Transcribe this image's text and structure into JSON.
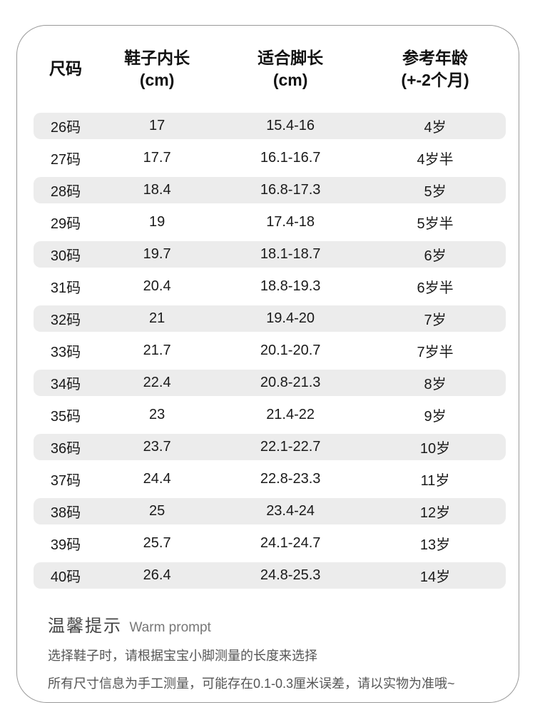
{
  "table": {
    "headers": [
      {
        "lines": [
          "尺码"
        ]
      },
      {
        "lines": [
          "鞋子内长",
          "(cm)"
        ]
      },
      {
        "lines": [
          "适合脚长",
          "(cm)"
        ]
      },
      {
        "lines": [
          "参考年龄",
          "(+-2个月)"
        ]
      }
    ],
    "rows": [
      {
        "size": "26码",
        "inner_length": "17",
        "foot_length": "15.4-16",
        "age": "4岁"
      },
      {
        "size": "27码",
        "inner_length": "17.7",
        "foot_length": "16.1-16.7",
        "age": "4岁半"
      },
      {
        "size": "28码",
        "inner_length": "18.4",
        "foot_length": "16.8-17.3",
        "age": "5岁"
      },
      {
        "size": "29码",
        "inner_length": "19",
        "foot_length": "17.4-18",
        "age": "5岁半"
      },
      {
        "size": "30码",
        "inner_length": "19.7",
        "foot_length": "18.1-18.7",
        "age": "6岁"
      },
      {
        "size": "31码",
        "inner_length": "20.4",
        "foot_length": "18.8-19.3",
        "age": "6岁半"
      },
      {
        "size": "32码",
        "inner_length": "21",
        "foot_length": "19.4-20",
        "age": "7岁"
      },
      {
        "size": "33码",
        "inner_length": "21.7",
        "foot_length": "20.1-20.7",
        "age": "7岁半"
      },
      {
        "size": "34码",
        "inner_length": "22.4",
        "foot_length": "20.8-21.3",
        "age": "8岁"
      },
      {
        "size": "35码",
        "inner_length": "23",
        "foot_length": "21.4-22",
        "age": "9岁"
      },
      {
        "size": "36码",
        "inner_length": "23.7",
        "foot_length": "22.1-22.7",
        "age": "10岁"
      },
      {
        "size": "37码",
        "inner_length": "24.4",
        "foot_length": "22.8-23.3",
        "age": "11岁"
      },
      {
        "size": "38码",
        "inner_length": "25",
        "foot_length": "23.4-24",
        "age": "12岁"
      },
      {
        "size": "39码",
        "inner_length": "25.7",
        "foot_length": "24.1-24.7",
        "age": "13岁"
      },
      {
        "size": "40码",
        "inner_length": "26.4",
        "foot_length": "24.8-25.3",
        "age": "14岁"
      }
    ]
  },
  "footer": {
    "title_zh": "温馨提示",
    "title_en": "Warm prompt",
    "lines": [
      "选择鞋子时，请根据宝宝小脚测量的长度来选择",
      "所有尺寸信息为手工测量，可能存在0.1-0.3厘米误差，请以实物为准哦~"
    ]
  },
  "colors": {
    "stripe": "#ececec",
    "card_border": "#999999",
    "table_text": "#1a1a1a",
    "footer_text": "#555555"
  }
}
